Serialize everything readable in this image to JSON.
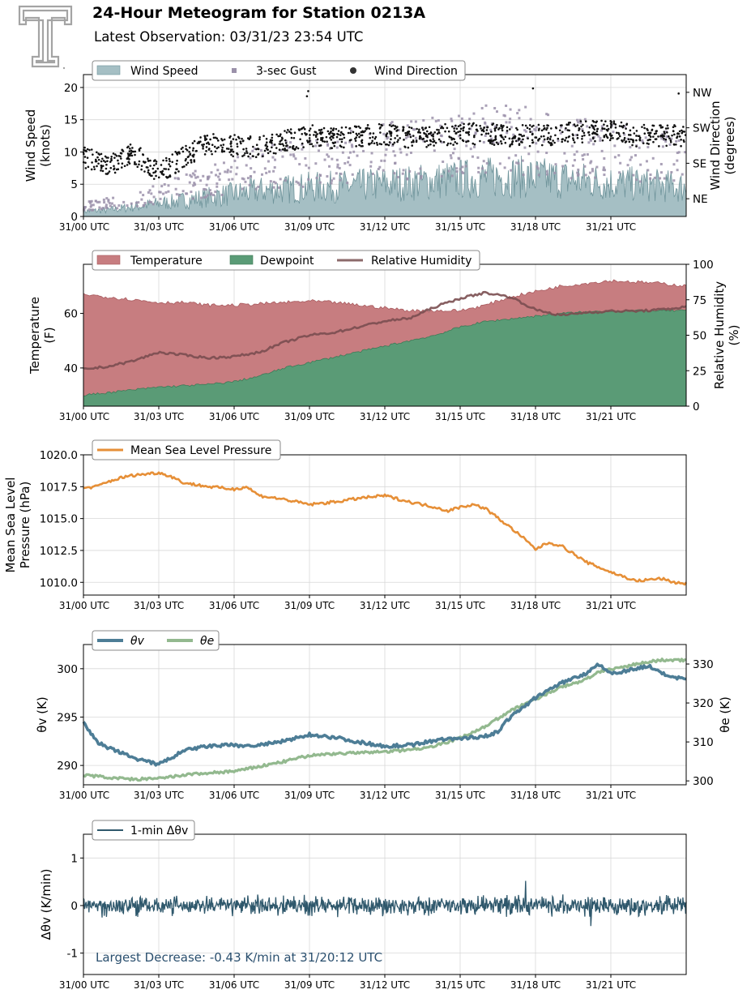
{
  "title": "24-Hour Meteogram for Station 0213A",
  "subtitle": "Latest Observation: 03/31/23 23:54 UTC",
  "x_ticks": [
    "31/00 UTC",
    "31/03 UTC",
    "31/06 UTC",
    "31/09 UTC",
    "31/12 UTC",
    "31/15 UTC",
    "31/18 UTC",
    "31/21 UTC"
  ],
  "colors": {
    "wind_speed": "#a5bfc4",
    "wind_speed_line": "#6f949b",
    "gust": "#9b91aa",
    "direction": "#111111",
    "temperature": "#c77d80",
    "dewpoint": "#5a9b76",
    "rh": "#7a4e50",
    "pressure": "#e68f37",
    "theta_v": "#4d7d96",
    "theta_e": "#93b98f",
    "dtheta": "#2f586c",
    "annotation": "#2a4f6e"
  },
  "chart_data": [
    {
      "type": "area",
      "name": "wind",
      "legend": [
        "Wind Speed",
        "3-sec Gust",
        "Wind Direction"
      ],
      "ylabel": "Wind Speed\n(knots)",
      "ylabel_right": "Wind Direction\n(degrees)",
      "ylim": [
        0,
        22
      ],
      "yticks": [
        0,
        5,
        10,
        15,
        20
      ],
      "right_ticks": [
        "NE",
        "SE",
        "SW",
        "NW"
      ],
      "right_tick_values": [
        45,
        135,
        225,
        315
      ],
      "right_ylim": [
        0,
        360
      ],
      "grid": true,
      "hours": [
        0,
        1,
        2,
        3,
        4,
        5,
        6,
        7,
        8,
        9,
        10,
        11,
        12,
        13,
        14,
        15,
        16,
        17,
        18,
        19,
        20,
        21,
        22,
        24
      ],
      "wind_speed": [
        0.8,
        1.0,
        1.5,
        2.0,
        2.5,
        3.0,
        3.5,
        4.0,
        4.2,
        4.5,
        4.6,
        4.8,
        5.0,
        5.2,
        5.5,
        5.8,
        6.0,
        6.2,
        6.0,
        5.8,
        5.5,
        5.2,
        5.0,
        4.5
      ],
      "gust": [
        1.5,
        2.0,
        2.5,
        3.5,
        4.5,
        5.5,
        6.5,
        7.5,
        8.0,
        8.5,
        9.0,
        9.5,
        10.0,
        10.5,
        11.0,
        11.5,
        12.0,
        12.0,
        11.5,
        11.0,
        10.5,
        10.0,
        9.5,
        9.0
      ],
      "direction_deg": [
        150,
        130,
        160,
        110,
        150,
        185,
        180,
        175,
        190,
        205,
        200,
        205,
        210,
        200,
        205,
        210,
        210,
        205,
        205,
        210,
        215,
        220,
        205,
        205
      ]
    },
    {
      "type": "area",
      "name": "temperature",
      "legend": [
        "Temperature",
        "Dewpoint",
        "Relative Humidity"
      ],
      "ylabel": "Temperature\n(F)",
      "ylabel_right": "Relative Humidity\n(%)",
      "ylim": [
        26,
        78
      ],
      "yticks": [
        40,
        60
      ],
      "right_ylim": [
        0,
        100
      ],
      "right_yticks": [
        0,
        25,
        50,
        75,
        100
      ],
      "grid": true,
      "hours": [
        0,
        1,
        2,
        3,
        4,
        5,
        6,
        7,
        8,
        9,
        10,
        11,
        12,
        13,
        14,
        15,
        16,
        17,
        18,
        19,
        20,
        21,
        22,
        23,
        24
      ],
      "temperature": [
        67,
        66,
        65,
        64,
        64,
        63,
        63,
        63.5,
        64,
        64.5,
        64,
        63,
        62,
        61,
        61,
        61,
        63,
        66,
        68,
        70,
        71,
        72,
        71.5,
        71,
        70
      ],
      "dewpoint": [
        30,
        31,
        32,
        33,
        33.5,
        34,
        35,
        37,
        40,
        42,
        44,
        46,
        48,
        50,
        52,
        55,
        57,
        58,
        59,
        60,
        60.5,
        61,
        61,
        61,
        61
      ],
      "relative_humidity": [
        26,
        28,
        32,
        38,
        36,
        34,
        35,
        38,
        45,
        50,
        52,
        56,
        60,
        62,
        70,
        76,
        80,
        77,
        68,
        64,
        66,
        67,
        67,
        68,
        70
      ]
    },
    {
      "type": "line",
      "name": "pressure",
      "legend": [
        "Mean Sea Level Pressure"
      ],
      "ylabel": "Mean Sea Level\nPressure (hPa)",
      "ylim": [
        1009,
        1020
      ],
      "yticks": [
        1010.0,
        1012.5,
        1015.0,
        1017.5,
        1020.0
      ],
      "grid": true,
      "hours": [
        0,
        0.5,
        1,
        1.5,
        2,
        2.5,
        3,
        3.5,
        4,
        5,
        6,
        6.5,
        7,
        8,
        9,
        10,
        11,
        12,
        13,
        14,
        14.5,
        15,
        15.5,
        16,
        17,
        17.5,
        18,
        18.5,
        19,
        20,
        21,
        22,
        23,
        23.5,
        24
      ],
      "values": [
        1017.4,
        1017.5,
        1017.9,
        1018.2,
        1018.4,
        1018.5,
        1018.6,
        1018.3,
        1017.8,
        1017.5,
        1017.3,
        1017.5,
        1016.8,
        1016.5,
        1016.1,
        1016.3,
        1016.6,
        1016.8,
        1016.3,
        1015.9,
        1015.6,
        1015.9,
        1016.1,
        1015.8,
        1014.3,
        1013.5,
        1012.6,
        1013.1,
        1012.9,
        1011.6,
        1010.8,
        1010.1,
        1010.3,
        1010.0,
        1009.9
      ]
    },
    {
      "type": "line",
      "name": "theta",
      "legend": [
        "θv",
        "θe"
      ],
      "ylabel": "θv (K)",
      "ylabel_right": "θe (K)",
      "ylim": [
        288,
        302.5
      ],
      "yticks": [
        290,
        295,
        300
      ],
      "right_ylim": [
        299,
        335
      ],
      "right_yticks": [
        300,
        310,
        320,
        330
      ],
      "grid": true,
      "hours": [
        0,
        0.5,
        1,
        1.5,
        2,
        2.5,
        3,
        3.5,
        4,
        4.5,
        5,
        6,
        6.5,
        7,
        8,
        9,
        10,
        11,
        12,
        13,
        14,
        15,
        16,
        16.5,
        17,
        18,
        19,
        20,
        20.5,
        21,
        22,
        22.5,
        23,
        24
      ],
      "theta_v": [
        294.5,
        292.5,
        291.8,
        291.3,
        290.8,
        290.4,
        290.1,
        290.8,
        291.5,
        291.8,
        292.0,
        292.1,
        292.0,
        292.1,
        292.5,
        293.2,
        292.9,
        292.4,
        292.0,
        292.1,
        292.6,
        292.8,
        293.0,
        293.5,
        295.0,
        297.0,
        298.5,
        299.5,
        300.5,
        299.5,
        300.0,
        300.3,
        299.5,
        298.8
      ],
      "theta_e": [
        301.5,
        301.2,
        300.9,
        300.6,
        300.4,
        300.5,
        300.6,
        301.0,
        301.5,
        301.8,
        302.0,
        302.5,
        303.0,
        303.7,
        305.0,
        306.5,
        307.0,
        307.2,
        307.5,
        308.0,
        309.0,
        311.0,
        314.0,
        316.0,
        318.0,
        321.0,
        324.0,
        326.0,
        328.0,
        328.5,
        330.0,
        330.5,
        331.0,
        331.0
      ]
    },
    {
      "type": "line",
      "name": "dtheta",
      "legend": [
        "1-min Δθv"
      ],
      "ylabel": "Δθv (K/min)",
      "ylim": [
        -1.45,
        1.5
      ],
      "yticks": [
        -1,
        0,
        1
      ],
      "grid": true,
      "annotation": "Largest Decrease: -0.43 K/min at 31/20:12 UTC",
      "min_point": {
        "hour": 20.2,
        "value": -0.43
      },
      "max_point": {
        "hour": 17.6,
        "value": 0.52
      },
      "noise_amplitude": 0.18
    }
  ]
}
